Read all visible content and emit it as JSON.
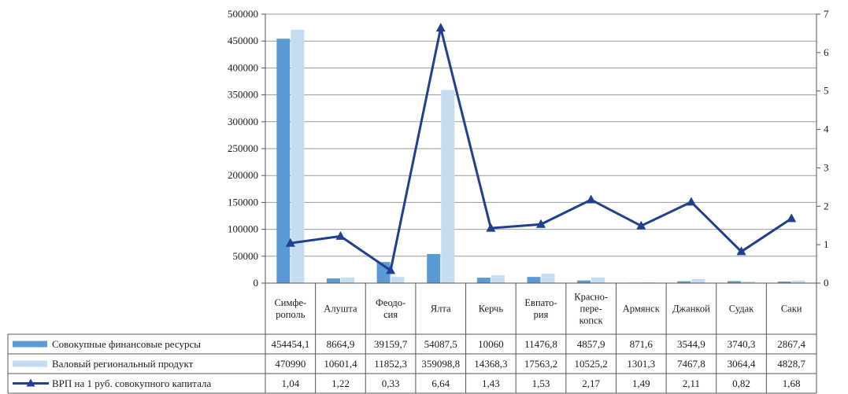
{
  "chart_data": {
    "type": "bar",
    "categories": [
      [
        "Симфе-",
        "рополь"
      ],
      [
        "Алушта"
      ],
      [
        "Феодо-",
        "сия"
      ],
      [
        "Ялта"
      ],
      [
        "Керчь"
      ],
      [
        "Евпато-",
        "рия"
      ],
      [
        "Красно-",
        "пере-",
        "копск"
      ],
      [
        "Армянск"
      ],
      [
        "Джанкой"
      ],
      [
        "Судак"
      ],
      [
        "Саки"
      ]
    ],
    "y_left": {
      "min": 0,
      "max": 500000,
      "ticks": [
        "0",
        "50000",
        "100000",
        "150000",
        "200000",
        "250000",
        "300000",
        "350000",
        "400000",
        "450000",
        "500000"
      ]
    },
    "y_right": {
      "min": 0,
      "max": 7,
      "ticks": [
        "0",
        "1",
        "2",
        "3",
        "4",
        "5",
        "6",
        "7"
      ]
    },
    "grid": true,
    "legend": "table-bottom",
    "series": [
      {
        "name": "Совокупные финансовые ресурсы",
        "kind": "bar",
        "axis": "left",
        "color": "#5b9bd5",
        "values": [
          454454.1,
          8664.9,
          39159.7,
          54087.5,
          10060,
          11476.8,
          4857.9,
          871.6,
          3544.9,
          3740.3,
          2867.4
        ],
        "labels": [
          "454454,1",
          "8664,9",
          "39159,7",
          "54087,5",
          "10060",
          "11476,8",
          "4857,9",
          "871,6",
          "3544,9",
          "3740,3",
          "2867,4"
        ]
      },
      {
        "name": "Валовый региональный продукт",
        "kind": "bar",
        "axis": "left",
        "color": "#c6dcf0",
        "values": [
          470990,
          10601.4,
          11852.3,
          359098.8,
          14368.3,
          17563.2,
          10525.2,
          1301.3,
          7467.8,
          3064.4,
          4828.7
        ],
        "labels": [
          "470990",
          "10601,4",
          "11852,3",
          "359098,8",
          "14368,3",
          "17563,2",
          "10525,2",
          "1301,3",
          "7467,8",
          "3064,4",
          "4828,7"
        ]
      },
      {
        "name": "ВРП на 1 руб. совокупного капитала",
        "kind": "line",
        "axis": "right",
        "color": "#1f3f8f",
        "values": [
          1.04,
          1.22,
          0.33,
          6.64,
          1.43,
          1.53,
          2.17,
          1.49,
          2.11,
          0.82,
          1.68
        ],
        "labels": [
          "1,04",
          "1,22",
          "0,33",
          "6,64",
          "1,43",
          "1,53",
          "2,17",
          "1,49",
          "2,11",
          "0,82",
          "1,68"
        ]
      }
    ]
  }
}
